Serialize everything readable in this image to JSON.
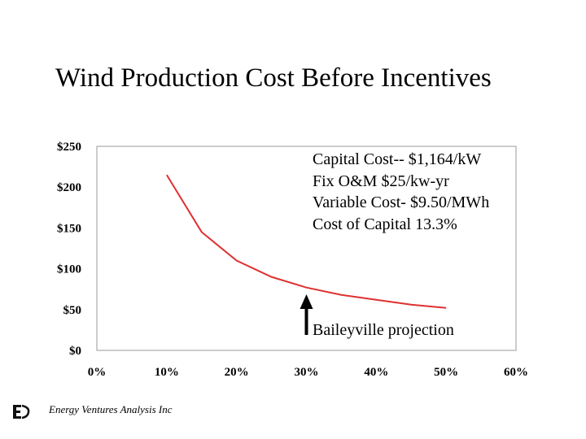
{
  "title": "Wind Production Cost Before Incentives",
  "chart_data": {
    "type": "line",
    "x": [
      0.1,
      0.15,
      0.2,
      0.25,
      0.3,
      0.35,
      0.4,
      0.45,
      0.5
    ],
    "values": [
      215,
      145,
      110,
      90,
      77,
      68,
      62,
      56,
      52
    ],
    "xlim": [
      0,
      0.6
    ],
    "ylim": [
      0,
      250
    ],
    "y_ticks": [
      "$0",
      "$50",
      "$100",
      "$150",
      "$200",
      "$250"
    ],
    "x_ticks": [
      "0%",
      "10%",
      "20%",
      "30%",
      "40%",
      "50%",
      "60%"
    ],
    "series_color": "#e03030",
    "grid": false,
    "annotation": {
      "text": "Baileyville projection",
      "x": 0.3
    }
  },
  "notes": [
    "Capital Cost-- $1,164/kW",
    "Fix O&M $25/kw-yr",
    "Variable Cost- $9.50/MWh",
    "Cost of Capital 13.3%"
  ],
  "footer": "Energy Ventures Analysis Inc"
}
